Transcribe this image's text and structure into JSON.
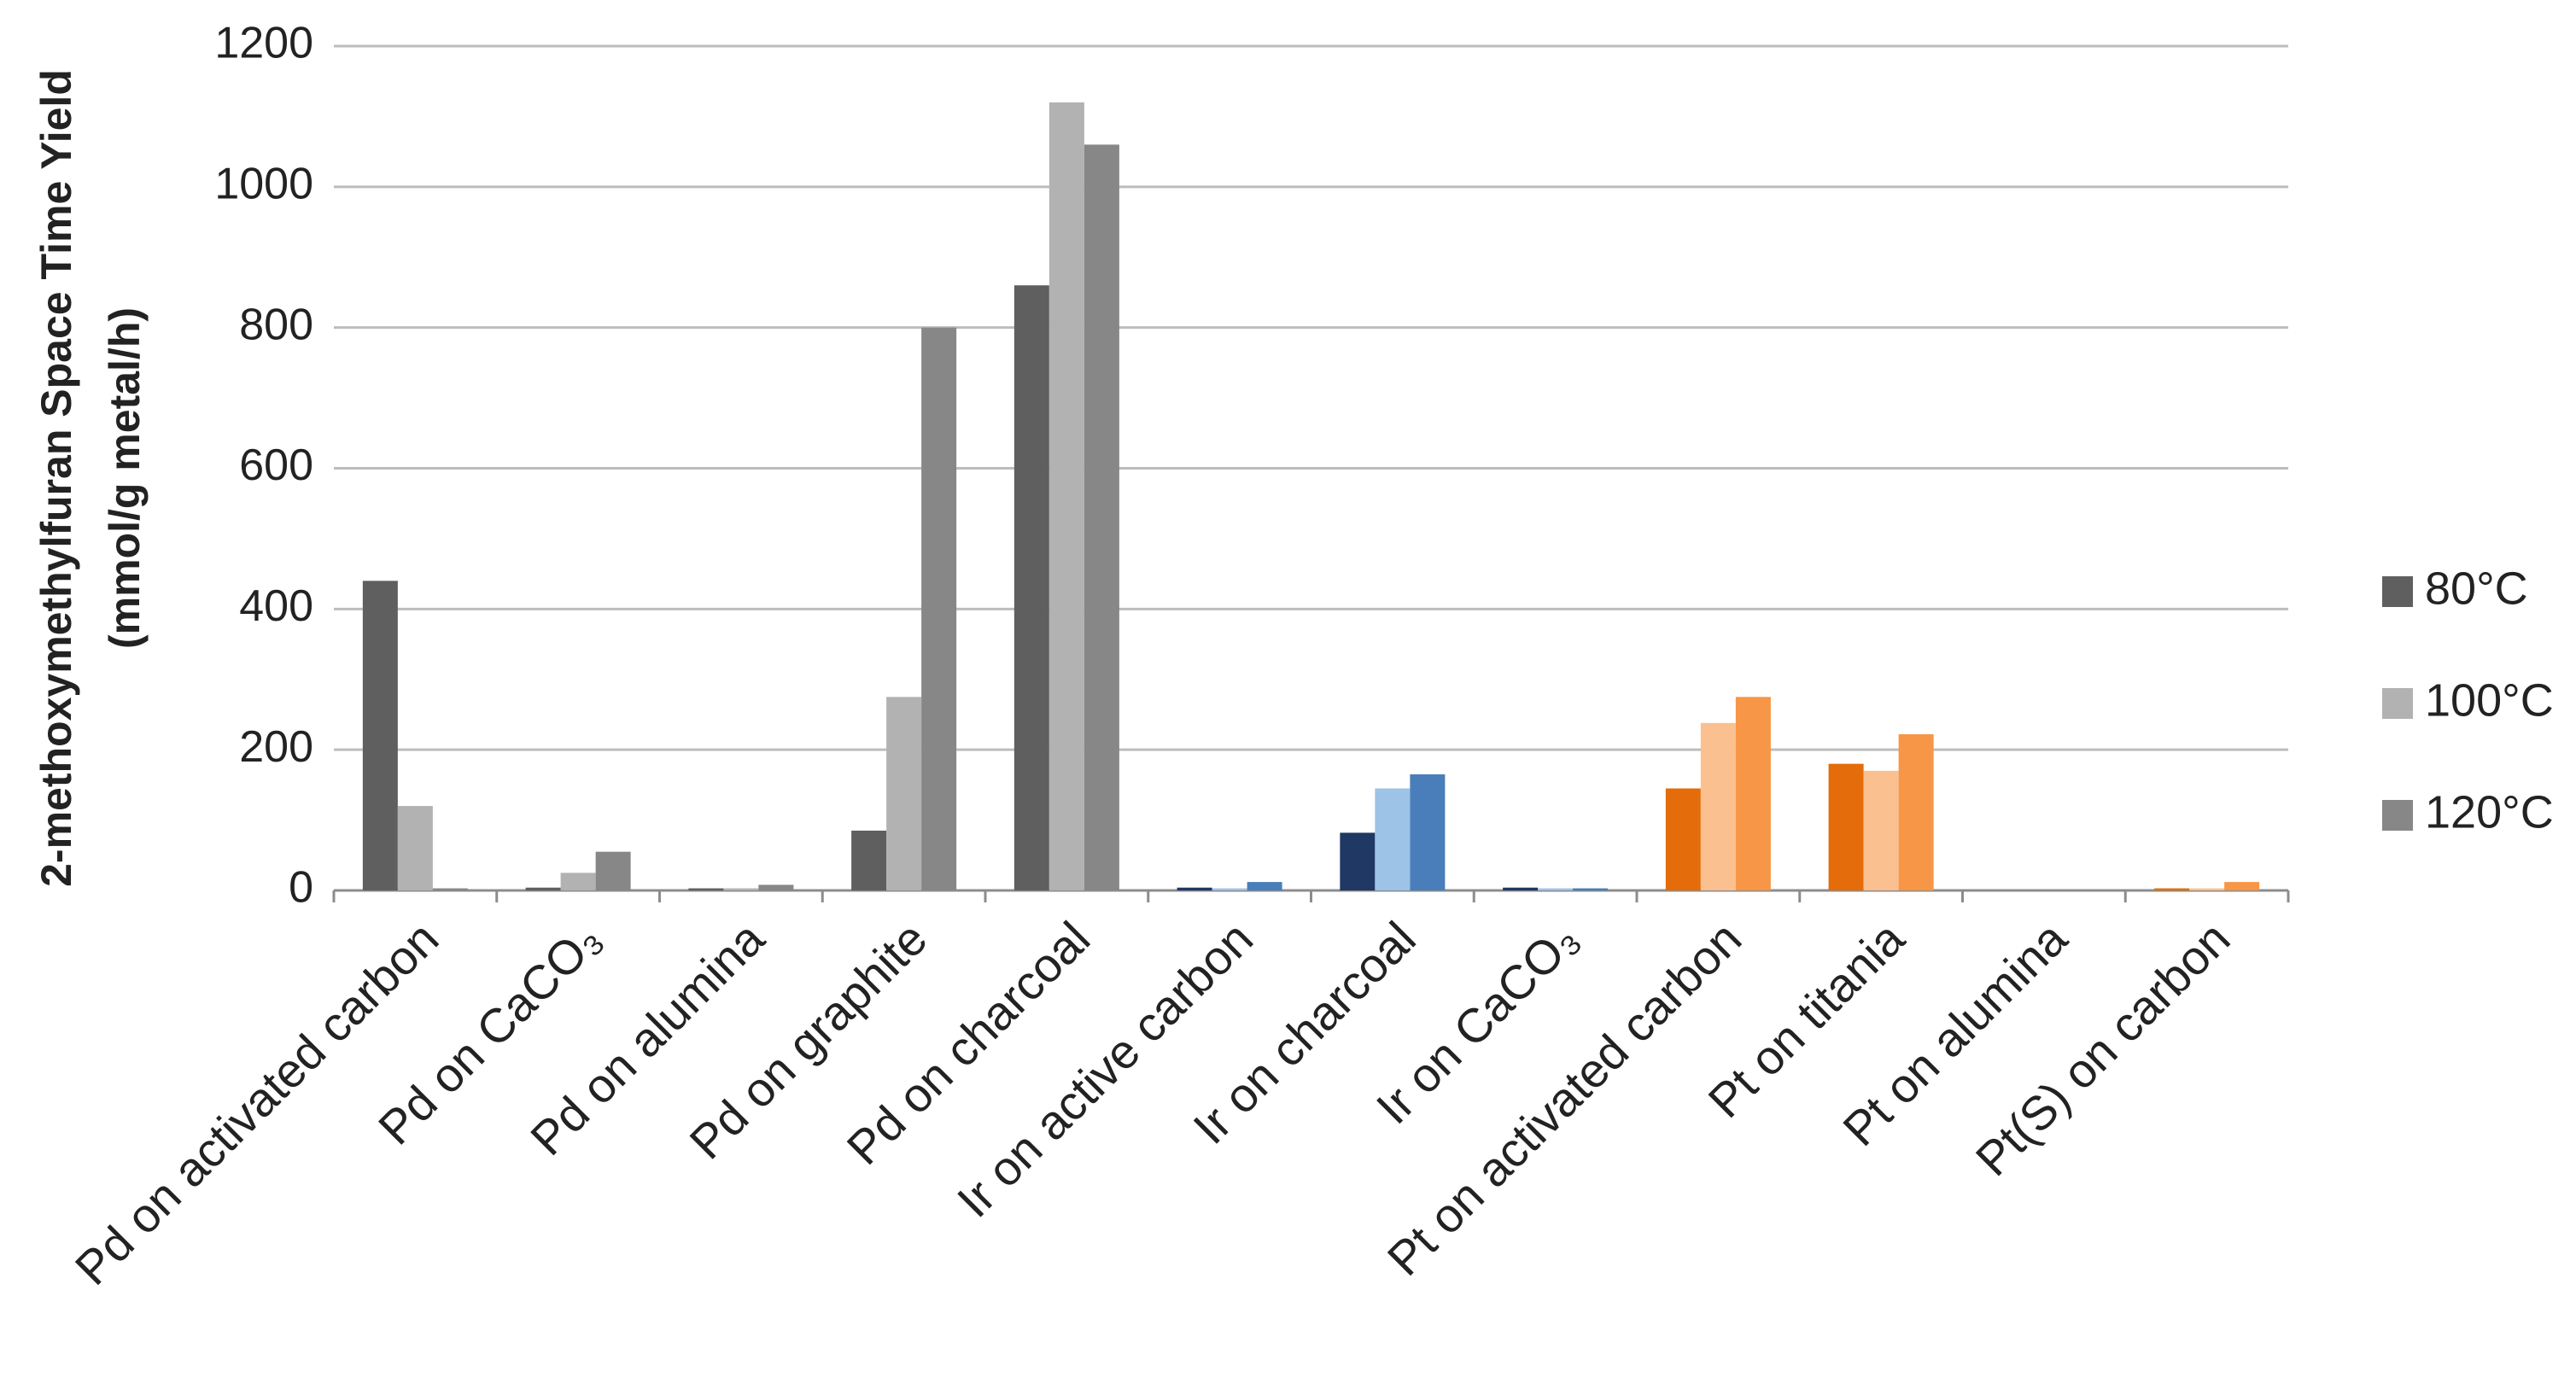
{
  "chart_data": {
    "type": "bar",
    "ylabel": [
      "2-methoxymethylfuran Space Time Yield",
      "(mmol/g metal/h)"
    ],
    "categories": [
      "Pd on activated carbon",
      "Pd on CaCO₃",
      "Pd on alumina",
      "Pd on graphite",
      "Pd on charcoal",
      "Ir on active carbon",
      "Ir on charcoal",
      "Ir on CaCO₃",
      "Pt on activated carbon",
      "Pt on titania",
      "Pt on alumina",
      "Pt(S) on carbon"
    ],
    "series": [
      {
        "name": "80°C",
        "color": "#5f5f5f",
        "values": [
          440,
          4,
          3,
          85,
          860,
          4,
          82,
          4,
          145,
          180,
          0,
          3
        ],
        "colors": [
          "#5f5f5f",
          "#5f5f5f",
          "#5f5f5f",
          "#5f5f5f",
          "#5f5f5f",
          "#1f3864",
          "#1f3864",
          "#1f3864",
          "#e46c0a",
          "#e46c0a",
          "#e46c0a",
          "#e46c0a"
        ]
      },
      {
        "name": "100°C",
        "color": "#b2b2b2",
        "values": [
          120,
          25,
          3,
          275,
          1120,
          3,
          145,
          3,
          238,
          170,
          0,
          3
        ],
        "colors": [
          "#b2b2b2",
          "#b2b2b2",
          "#b2b2b2",
          "#b2b2b2",
          "#b2b2b2",
          "#9dc3e6",
          "#9dc3e6",
          "#9dc3e6",
          "#fac090",
          "#fac090",
          "#fac090",
          "#fac090"
        ]
      },
      {
        "name": "120°C",
        "color": "#878787",
        "values": [
          3,
          55,
          8,
          800,
          1060,
          12,
          165,
          3,
          275,
          222,
          0,
          12
        ],
        "colors": [
          "#878787",
          "#878787",
          "#878787",
          "#878787",
          "#878787",
          "#4a7ebb",
          "#4a7ebb",
          "#4a7ebb",
          "#f79646",
          "#f79646",
          "#f79646",
          "#f79646"
        ]
      }
    ],
    "ylim": [
      0,
      1200
    ],
    "yticks": [
      0,
      200,
      400,
      600,
      800,
      1000,
      1200
    ],
    "grid": true,
    "legend": "right"
  }
}
